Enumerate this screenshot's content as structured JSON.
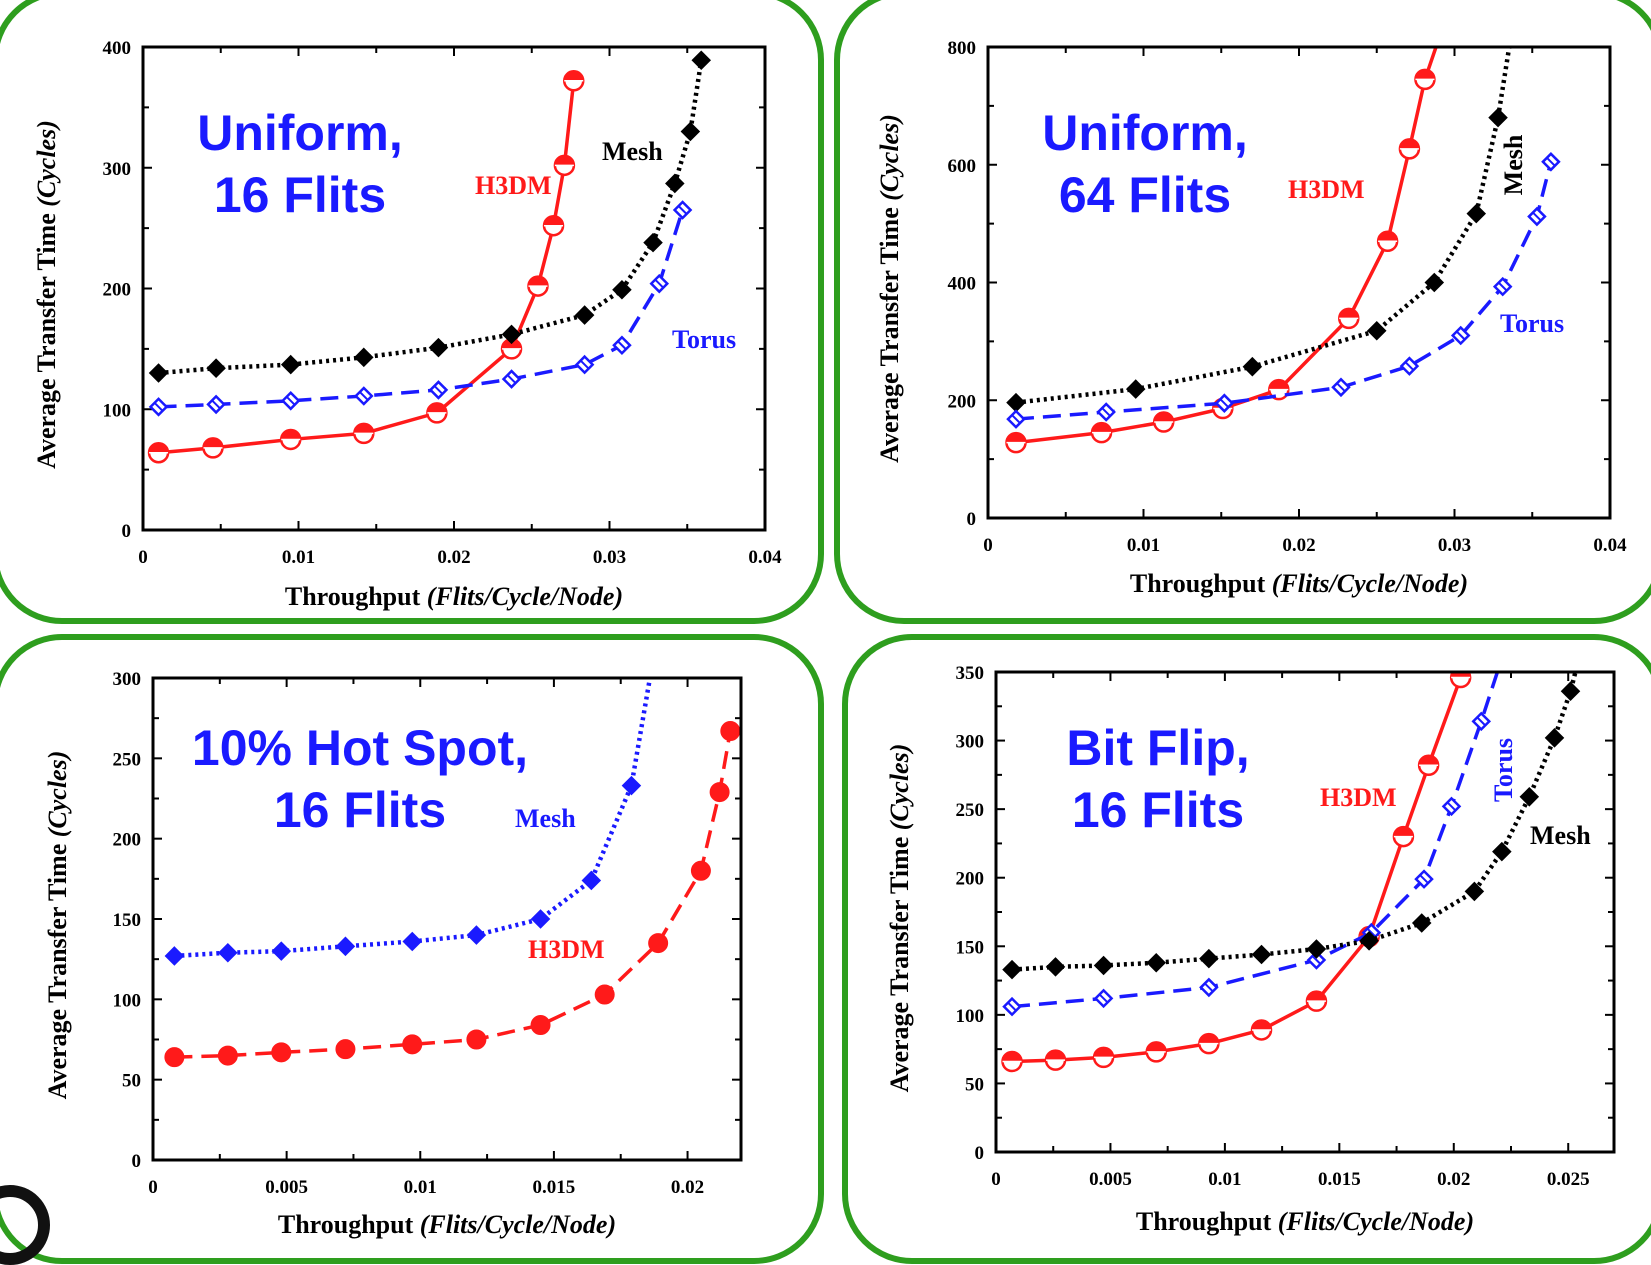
{
  "chart_data": [
    {
      "type": "line",
      "annotation": [
        "Uniform,",
        "16 Flits"
      ],
      "xlabel": "Throughput",
      "xlabel_units": "(Flits/Cycle/Node)",
      "ylabel": "Average Transfer Time",
      "ylabel_units": "(Cycles)",
      "xlim": [
        0,
        0.04
      ],
      "ylim": [
        0,
        400
      ],
      "x_ticks": [
        0,
        0.01,
        0.02,
        0.03,
        0.04
      ],
      "x_tick_labels": [
        "0",
        "0.01",
        "0.02",
        "0.03",
        "0.04"
      ],
      "y_ticks": [
        0,
        100,
        200,
        300,
        400
      ],
      "y_tick_labels": [
        "0",
        "100",
        "200",
        "300",
        "400"
      ],
      "grid": false,
      "series": [
        {
          "name": "H3DM",
          "color": "#ff1a1a",
          "dash": "solid",
          "marker": "half-circle",
          "x": [
            0.001,
            0.0045,
            0.0095,
            0.0142,
            0.0189,
            0.0237,
            0.0254,
            0.0264,
            0.0271,
            0.0277
          ],
          "y": [
            64,
            68,
            75,
            80,
            97,
            150,
            202,
            252,
            302,
            372
          ]
        },
        {
          "name": "Mesh",
          "color": "#000000",
          "dash": "dotted",
          "marker": "diamond",
          "x": [
            0.001,
            0.0047,
            0.0095,
            0.0142,
            0.019,
            0.0237,
            0.0284,
            0.0308,
            0.0328,
            0.0342,
            0.0352,
            0.0359
          ],
          "y": [
            130,
            134,
            137,
            143,
            151,
            162,
            178,
            199,
            238,
            287,
            330,
            389
          ]
        },
        {
          "name": "Torus",
          "color": "#1a1aff",
          "dash": "dashed",
          "marker": "open-diamond",
          "x": [
            0.001,
            0.0047,
            0.0095,
            0.0142,
            0.019,
            0.0237,
            0.0284,
            0.0308,
            0.0332,
            0.0347
          ],
          "y": [
            102,
            104,
            107,
            111,
            116,
            125,
            137,
            153,
            204,
            265
          ]
        }
      ]
    },
    {
      "type": "line",
      "annotation": [
        "Uniform,",
        "64 Flits"
      ],
      "xlabel": "Throughput",
      "xlabel_units": "(Flits/Cycle/Node)",
      "ylabel": "Average Transfer Time",
      "ylabel_units": "(Cycles)",
      "xlim": [
        0,
        0.04
      ],
      "ylim": [
        0,
        800
      ],
      "x_ticks": [
        0,
        0.01,
        0.02,
        0.03,
        0.04
      ],
      "x_tick_labels": [
        "0",
        "0.01",
        "0.02",
        "0.03",
        "0.04"
      ],
      "y_ticks": [
        0,
        200,
        400,
        600,
        800
      ],
      "y_tick_labels": [
        "0",
        "200",
        "400",
        "600",
        "800"
      ],
      "grid": false,
      "series": [
        {
          "name": "H3DM",
          "color": "#ff1a1a",
          "dash": "solid",
          "marker": "half-circle",
          "x": [
            0.0018,
            0.0073,
            0.0113,
            0.0151,
            0.0187,
            0.0232,
            0.0257,
            0.0271,
            0.0281,
            0.0292
          ],
          "y": [
            128,
            145,
            163,
            186,
            218,
            339,
            470,
            627,
            745,
            830
          ]
        },
        {
          "name": "Mesh",
          "color": "#000000",
          "dash": "dotted",
          "marker": "diamond",
          "x": [
            0.0018,
            0.0095,
            0.017,
            0.025,
            0.0287,
            0.0314,
            0.0328,
            0.0337
          ],
          "y": [
            196,
            219,
            257,
            318,
            400,
            517,
            680,
            830
          ]
        },
        {
          "name": "Torus",
          "color": "#1a1aff",
          "dash": "dashed",
          "marker": "open-diamond",
          "x": [
            0.0018,
            0.0076,
            0.0152,
            0.0227,
            0.0271,
            0.0304,
            0.0331,
            0.0353,
            0.0362
          ],
          "y": [
            168,
            180,
            195,
            222,
            258,
            310,
            393,
            512,
            605
          ]
        }
      ]
    },
    {
      "type": "line",
      "annotation": [
        "10% Hot Spot,",
        "16 Flits"
      ],
      "xlabel": "Throughput",
      "xlabel_units": "(Flits/Cycle/Node)",
      "ylabel": "Average Transfer Time",
      "ylabel_units": "(Cycles)",
      "xlim": [
        0,
        0.022
      ],
      "ylim": [
        0,
        300
      ],
      "x_ticks": [
        0,
        0.005,
        0.01,
        0.015,
        0.02
      ],
      "x_tick_labels": [
        "0",
        "0.005",
        "0.01",
        "0.015",
        "0.02"
      ],
      "y_ticks": [
        0,
        50,
        100,
        150,
        200,
        250,
        300
      ],
      "y_tick_labels": [
        "0",
        "50",
        "100",
        "150",
        "200",
        "250",
        "300"
      ],
      "grid": false,
      "series": [
        {
          "name": "Mesh",
          "color": "#1a1aff",
          "dash": "dotted",
          "marker": "diamond",
          "x": [
            0.0008,
            0.0028,
            0.0048,
            0.0072,
            0.0097,
            0.0121,
            0.0145,
            0.0164,
            0.0179,
            0.0188
          ],
          "y": [
            127,
            129,
            130,
            133,
            136,
            140,
            150,
            174,
            233,
            320
          ]
        },
        {
          "name": "H3DM",
          "color": "#ff1a1a",
          "dash": "dashed",
          "marker": "circle",
          "x": [
            0.0008,
            0.0028,
            0.0048,
            0.0072,
            0.0097,
            0.0121,
            0.0145,
            0.0169,
            0.0189,
            0.0205,
            0.0212,
            0.0216
          ],
          "y": [
            64,
            65,
            67,
            69,
            72,
            75,
            84,
            103,
            135,
            180,
            229,
            267
          ]
        }
      ]
    },
    {
      "type": "line",
      "annotation": [
        "Bit Flip,",
        "16 Flits"
      ],
      "xlabel": "Throughput",
      "xlabel_units": "(Flits/Cycle/Node)",
      "ylabel": "Average Transfer Time",
      "ylabel_units": "(Cycles)",
      "xlim": [
        0,
        0.027
      ],
      "ylim": [
        0,
        350
      ],
      "x_ticks": [
        0,
        0.005,
        0.01,
        0.015,
        0.02,
        0.025
      ],
      "x_tick_labels": [
        "0",
        "0.005",
        "0.01",
        "0.015",
        "0.02",
        "0.025"
      ],
      "y_ticks": [
        0,
        50,
        100,
        150,
        200,
        250,
        300,
        350
      ],
      "y_tick_labels": [
        "0",
        "50",
        "100",
        "150",
        "200",
        "250",
        "300",
        "350"
      ],
      "grid": false,
      "series": [
        {
          "name": "H3DM",
          "color": "#ff1a1a",
          "dash": "solid",
          "marker": "half-circle",
          "x": [
            0.0007,
            0.0026,
            0.0047,
            0.007,
            0.0093,
            0.0116,
            0.014,
            0.0163,
            0.0178,
            0.0189,
            0.0203,
            0.0208
          ],
          "y": [
            66,
            67,
            69,
            73,
            79,
            89,
            110,
            157,
            230,
            282,
            346,
            365
          ]
        },
        {
          "name": "Torus",
          "color": "#1a1aff",
          "dash": "dashed",
          "marker": "open-diamond",
          "x": [
            0.0007,
            0.0047,
            0.0093,
            0.014,
            0.0164,
            0.0187,
            0.0199,
            0.0212,
            0.0222
          ],
          "y": [
            106,
            112,
            120,
            140,
            160,
            199,
            252,
            314,
            365
          ]
        },
        {
          "name": "Mesh",
          "color": "#000000",
          "dash": "dotted",
          "marker": "diamond",
          "x": [
            0.0007,
            0.0026,
            0.0047,
            0.007,
            0.0093,
            0.0116,
            0.014,
            0.0163,
            0.0186,
            0.0209,
            0.0221,
            0.0233,
            0.0244,
            0.0251,
            0.0255
          ],
          "y": [
            133,
            135,
            136,
            138,
            141,
            144,
            148,
            154,
            167,
            190,
            219,
            259,
            302,
            336,
            362
          ]
        }
      ]
    }
  ],
  "labels": {
    "p0": {
      "H3DM": "H3DM",
      "Mesh": "Mesh",
      "Torus": "Torus"
    },
    "p1": {
      "H3DM": "H3DM",
      "Mesh": "Mesh",
      "Torus": "Torus"
    },
    "p2": {
      "Mesh": "Mesh",
      "H3DM": "H3DM"
    },
    "p3": {
      "H3DM": "H3DM",
      "Torus": "Torus",
      "Mesh": "Mesh"
    }
  }
}
